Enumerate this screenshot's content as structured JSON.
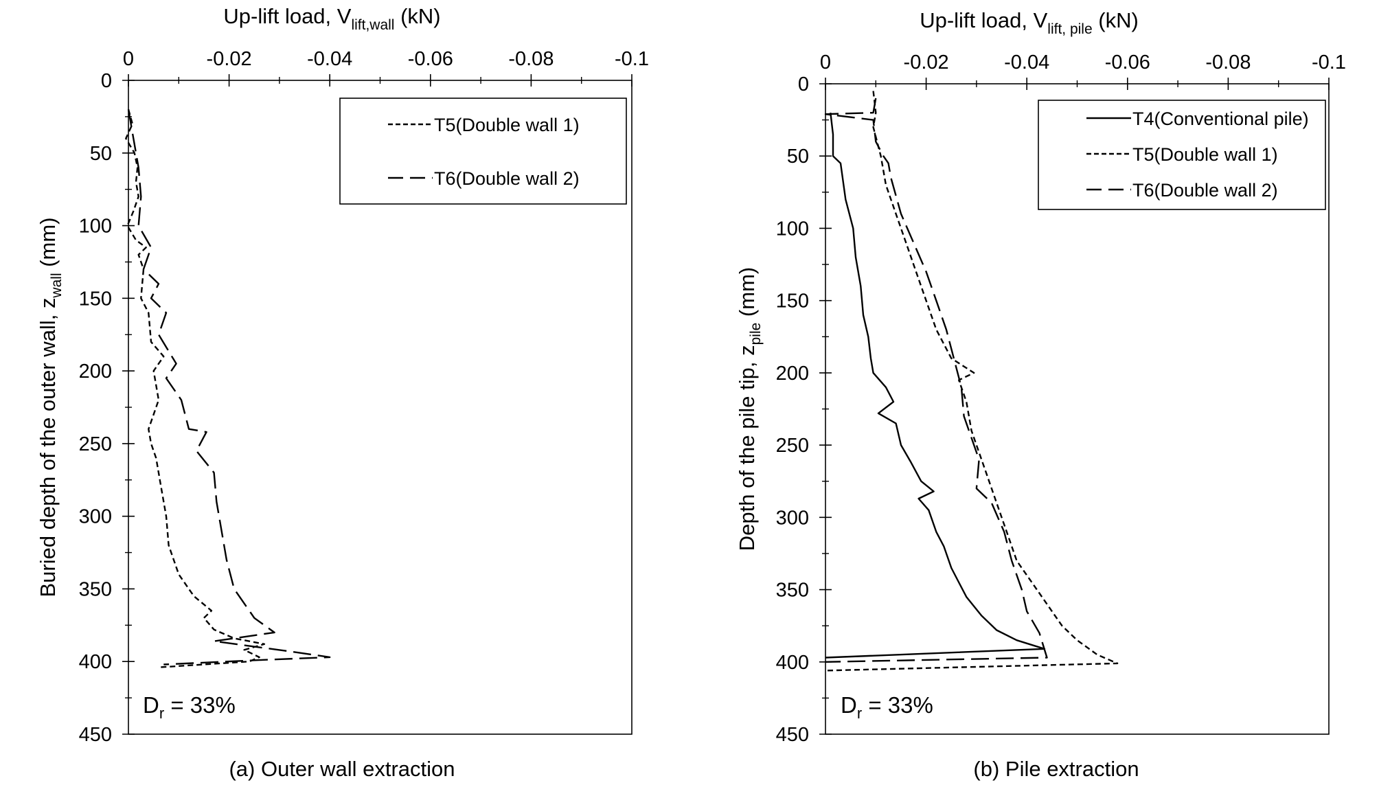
{
  "chart_data": [
    {
      "type": "line",
      "caption": "(a) Outer wall extraction",
      "xlabel": "Up-lift load, V",
      "xlabel_sub": "lift,wall",
      "xlabel_unit": " (kN)",
      "ylabel": "Buried depth of the outer wall, z",
      "ylabel_sub": "wall",
      "ylabel_unit": " (mm)",
      "xlim": [
        0,
        -0.1
      ],
      "ylim": [
        0,
        450
      ],
      "y_inverted": true,
      "x_axis_position": "top",
      "x_ticks": [
        "0",
        "-0.02",
        "-0.04",
        "-0.06",
        "-0.08",
        "-0.1"
      ],
      "x_tick_values": [
        0,
        -0.02,
        -0.04,
        -0.06,
        -0.08,
        -0.1
      ],
      "y_ticks": [
        "0",
        "50",
        "100",
        "150",
        "200",
        "250",
        "300",
        "350",
        "400",
        "450"
      ],
      "y_tick_values": [
        0,
        50,
        100,
        150,
        200,
        250,
        300,
        350,
        400,
        450
      ],
      "legend_position": "top-right",
      "annotation": {
        "text": "D",
        "sub": "r",
        "rest": " = 33%"
      },
      "series": [
        {
          "name": "T5(Double wall 1)",
          "style": "short-dash",
          "points": [
            [
              0,
              20
            ],
            [
              -0.0008,
              30
            ],
            [
              0.0005,
              40
            ],
            [
              -0.0012,
              50
            ],
            [
              -0.0018,
              60
            ],
            [
              -0.0015,
              70
            ],
            [
              -0.002,
              80
            ],
            [
              -0.001,
              90
            ],
            [
              0.0002,
              100
            ],
            [
              -0.0015,
              110
            ],
            [
              -0.0035,
              115
            ],
            [
              -0.002,
              120
            ],
            [
              -0.003,
              130
            ],
            [
              -0.0025,
              150
            ],
            [
              -0.004,
              160
            ],
            [
              -0.0045,
              180
            ],
            [
              -0.007,
              190
            ],
            [
              -0.005,
              200
            ],
            [
              -0.006,
              220
            ],
            [
              -0.004,
              240
            ],
            [
              -0.0045,
              250
            ],
            [
              -0.0055,
              260
            ],
            [
              -0.0065,
              280
            ],
            [
              -0.0075,
              300
            ],
            [
              -0.008,
              320
            ],
            [
              -0.01,
              340
            ],
            [
              -0.013,
              355
            ],
            [
              -0.0165,
              365
            ],
            [
              -0.015,
              370
            ],
            [
              -0.017,
              378
            ],
            [
              -0.021,
              384
            ],
            [
              -0.027,
              388
            ],
            [
              -0.023,
              392
            ],
            [
              -0.026,
              397
            ],
            [
              -0.024,
              400
            ],
            [
              -0.006,
              404
            ]
          ]
        },
        {
          "name": "T6(Double wall 2)",
          "style": "long-dash",
          "points": [
            [
              0,
              20
            ],
            [
              -0.001,
              40
            ],
            [
              -0.002,
              60
            ],
            [
              -0.0025,
              80
            ],
            [
              -0.002,
              100
            ],
            [
              -0.0045,
              115
            ],
            [
              -0.003,
              130
            ],
            [
              -0.006,
              140
            ],
            [
              -0.0045,
              150
            ],
            [
              -0.0075,
              160
            ],
            [
              -0.006,
              175
            ],
            [
              -0.0095,
              195
            ],
            [
              -0.0075,
              205
            ],
            [
              -0.0105,
              220
            ],
            [
              -0.012,
              240
            ],
            [
              -0.0155,
              242
            ],
            [
              -0.0135,
              255
            ],
            [
              -0.017,
              270
            ],
            [
              -0.0175,
              290
            ],
            [
              -0.0185,
              310
            ],
            [
              -0.0195,
              330
            ],
            [
              -0.021,
              350
            ],
            [
              -0.025,
              370
            ],
            [
              -0.029,
              380
            ],
            [
              -0.017,
              386
            ],
            [
              -0.032,
              393
            ],
            [
              -0.04,
              397
            ],
            [
              -0.026,
              399
            ],
            [
              -0.007,
              402
            ]
          ]
        }
      ]
    },
    {
      "type": "line",
      "caption": "(b) Pile extraction",
      "xlabel": "Up-lift load, V",
      "xlabel_sub": "lift, pile",
      "xlabel_unit": " (kN)",
      "ylabel": "Depth of the pile tip, z",
      "ylabel_sub": "pile",
      "ylabel_unit": " (mm)",
      "xlim": [
        0,
        -0.1
      ],
      "ylim": [
        0,
        450
      ],
      "y_inverted": true,
      "x_axis_position": "top",
      "x_ticks": [
        "0",
        "-0.02",
        "-0.04",
        "-0.06",
        "-0.08",
        "-0.1"
      ],
      "x_tick_values": [
        0,
        -0.02,
        -0.04,
        -0.06,
        -0.08,
        -0.1
      ],
      "y_ticks": [
        "0",
        "50",
        "100",
        "150",
        "200",
        "250",
        "300",
        "350",
        "400",
        "450"
      ],
      "y_tick_values": [
        0,
        50,
        100,
        150,
        200,
        250,
        300,
        350,
        400,
        450
      ],
      "legend_position": "top-right",
      "annotation": {
        "text": "D",
        "sub": "r",
        "rest": " = 33%"
      },
      "series": [
        {
          "name": "T4(Conventional pile)",
          "style": "solid",
          "points": [
            [
              -0.001,
              20
            ],
            [
              -0.0015,
              35
            ],
            [
              -0.0015,
              50
            ],
            [
              -0.003,
              55
            ],
            [
              -0.004,
              80
            ],
            [
              -0.0055,
              100
            ],
            [
              -0.006,
              120
            ],
            [
              -0.007,
              140
            ],
            [
              -0.0075,
              160
            ],
            [
              -0.0085,
              175
            ],
            [
              -0.009,
              190
            ],
            [
              -0.0095,
              200
            ],
            [
              -0.012,
              210
            ],
            [
              -0.0135,
              220
            ],
            [
              -0.0105,
              228
            ],
            [
              -0.014,
              235
            ],
            [
              -0.015,
              250
            ],
            [
              -0.017,
              262
            ],
            [
              -0.019,
              275
            ],
            [
              -0.0215,
              282
            ],
            [
              -0.0185,
              287
            ],
            [
              -0.0205,
              295
            ],
            [
              -0.022,
              310
            ],
            [
              -0.0235,
              320
            ],
            [
              -0.025,
              335
            ],
            [
              -0.0265,
              345
            ],
            [
              -0.028,
              355
            ],
            [
              -0.031,
              368
            ],
            [
              -0.034,
              378
            ],
            [
              -0.038,
              385
            ],
            [
              -0.0435,
              391
            ],
            [
              0,
              397
            ]
          ]
        },
        {
          "name": "T5(Double wall 1)",
          "style": "short-dash",
          "points": [
            [
              -0.0095,
              5
            ],
            [
              -0.01,
              20
            ],
            [
              -0.0095,
              30
            ],
            [
              -0.011,
              50
            ],
            [
              -0.012,
              70
            ],
            [
              -0.014,
              90
            ],
            [
              -0.016,
              110
            ],
            [
              -0.018,
              130
            ],
            [
              -0.02,
              150
            ],
            [
              -0.022,
              170
            ],
            [
              -0.025,
              190
            ],
            [
              -0.0295,
              200
            ],
            [
              -0.0265,
              205
            ],
            [
              -0.028,
              220
            ],
            [
              -0.029,
              240
            ],
            [
              -0.03,
              250
            ],
            [
              -0.032,
              270
            ],
            [
              -0.034,
              290
            ],
            [
              -0.036,
              310
            ],
            [
              -0.038,
              330
            ],
            [
              -0.041,
              345
            ],
            [
              -0.044,
              360
            ],
            [
              -0.047,
              375
            ],
            [
              -0.05,
              385
            ],
            [
              -0.054,
              395
            ],
            [
              -0.058,
              401
            ],
            [
              0,
              406
            ]
          ]
        },
        {
          "name": "T6(Double wall 2)",
          "style": "long-dash",
          "points": [
            [
              -0.01,
              10
            ],
            [
              -0.0095,
              20
            ],
            [
              0,
              21
            ],
            [
              -0.0095,
              25
            ],
            [
              -0.01,
              40
            ],
            [
              -0.0115,
              50
            ],
            [
              -0.0125,
              55
            ],
            [
              -0.013,
              65
            ],
            [
              -0.015,
              90
            ],
            [
              -0.0175,
              110
            ],
            [
              -0.02,
              130
            ],
            [
              -0.022,
              150
            ],
            [
              -0.024,
              170
            ],
            [
              -0.0255,
              190
            ],
            [
              -0.027,
              210
            ],
            [
              -0.0275,
              230
            ],
            [
              -0.029,
              245
            ],
            [
              -0.0305,
              260
            ],
            [
              -0.03,
              280
            ],
            [
              -0.033,
              290
            ],
            [
              -0.0355,
              310
            ],
            [
              -0.037,
              330
            ],
            [
              -0.039,
              350
            ],
            [
              -0.04,
              365
            ],
            [
              -0.0425,
              380
            ],
            [
              -0.044,
              397
            ],
            [
              0,
              400
            ]
          ]
        }
      ]
    }
  ]
}
